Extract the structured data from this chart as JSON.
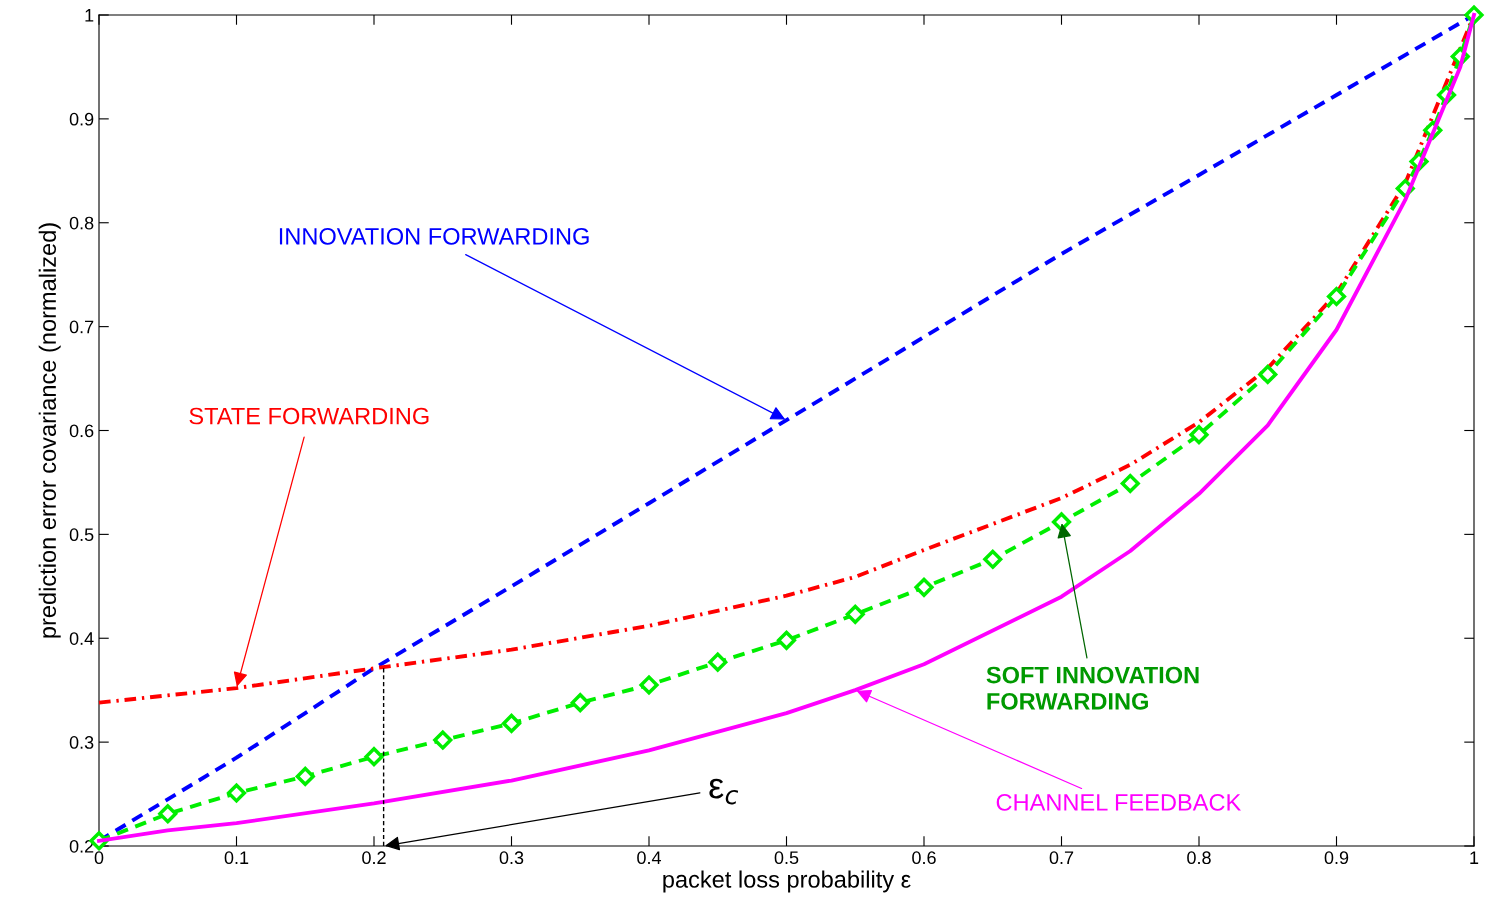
{
  "chart_data": {
    "type": "line",
    "xlabel": "packet loss probability ε",
    "ylabel": "prediction error covariance (normalized)",
    "xlim": [
      0,
      1
    ],
    "ylim": [
      0.2,
      1
    ],
    "xticks": [
      0,
      0.1,
      0.2,
      0.3,
      0.4,
      0.5,
      0.6,
      0.7,
      0.8,
      0.9,
      1
    ],
    "yticks": [
      0.2,
      0.3,
      0.4,
      0.5,
      0.6,
      0.7,
      0.8,
      0.9,
      1
    ],
    "grid": false,
    "legend": false,
    "series": [
      {
        "color": "#0000ff",
        "line_style": "dashed",
        "marker": "none",
        "x": [
          0,
          0.1,
          0.2,
          0.3,
          0.4,
          0.5,
          0.6,
          0.7,
          0.8,
          0.9,
          1
        ],
        "values": [
          0.205,
          0.285,
          0.371,
          0.45,
          0.53,
          0.61,
          0.69,
          0.77,
          0.846,
          0.923,
          1.0
        ]
      },
      {
        "color": "#ff0000",
        "line_style": "dashdot",
        "marker": "none",
        "x": [
          0,
          0.1,
          0.2,
          0.3,
          0.4,
          0.5,
          0.55,
          0.6,
          0.7,
          0.75,
          0.8,
          0.85,
          0.9,
          0.95,
          1
        ],
        "values": [
          0.338,
          0.352,
          0.371,
          0.389,
          0.412,
          0.441,
          0.459,
          0.485,
          0.535,
          0.567,
          0.608,
          0.66,
          0.732,
          0.838,
          1.0
        ]
      },
      {
        "color": "#00ee00",
        "line_style": "dashed",
        "marker": "diamond",
        "x": [
          0,
          0.05,
          0.1,
          0.15,
          0.2,
          0.25,
          0.3,
          0.35,
          0.4,
          0.45,
          0.5,
          0.55,
          0.6,
          0.65,
          0.7,
          0.75,
          0.8,
          0.85,
          0.9,
          0.95,
          0.96,
          0.97,
          0.98,
          0.99,
          1
        ],
        "values": [
          0.205,
          0.231,
          0.251,
          0.267,
          0.286,
          0.302,
          0.318,
          0.338,
          0.355,
          0.377,
          0.398,
          0.423,
          0.449,
          0.476,
          0.512,
          0.549,
          0.596,
          0.654,
          0.729,
          0.833,
          0.859,
          0.889,
          0.923,
          0.96,
          1.0
        ]
      },
      {
        "color": "#ff00ff",
        "line_style": "solid",
        "marker": "none",
        "x": [
          0,
          0.05,
          0.1,
          0.2,
          0.3,
          0.4,
          0.5,
          0.55,
          0.6,
          0.7,
          0.75,
          0.8,
          0.85,
          0.9,
          0.95,
          0.99,
          1
        ],
        "values": [
          0.205,
          0.215,
          0.222,
          0.241,
          0.263,
          0.292,
          0.328,
          0.35,
          0.375,
          0.44,
          0.484,
          0.539,
          0.605,
          0.697,
          0.822,
          0.95,
          1.0
        ]
      },
      {
        "color": "#000000",
        "line_style": "dashed",
        "marker": "none",
        "x": [
          0.207,
          0.207
        ],
        "values": [
          0.2,
          0.371
        ]
      }
    ],
    "annotations": [
      {
        "text": "INNOVATION FORWARDING",
        "x": 0.5,
        "y": 0.61
      },
      {
        "text": "STATE FORWARDING",
        "x": 0.1,
        "y": 0.352
      },
      {
        "text": "SOFT INNOVATION\nFORWARDING",
        "x": 0.7,
        "y": 0.512
      },
      {
        "text": "CHANNEL FEEDBACK",
        "x": 0.55,
        "y": 0.35
      },
      {
        "text": "ε$_{c}$",
        "x": 0.207,
        "y": 0.2
      }
    ]
  }
}
